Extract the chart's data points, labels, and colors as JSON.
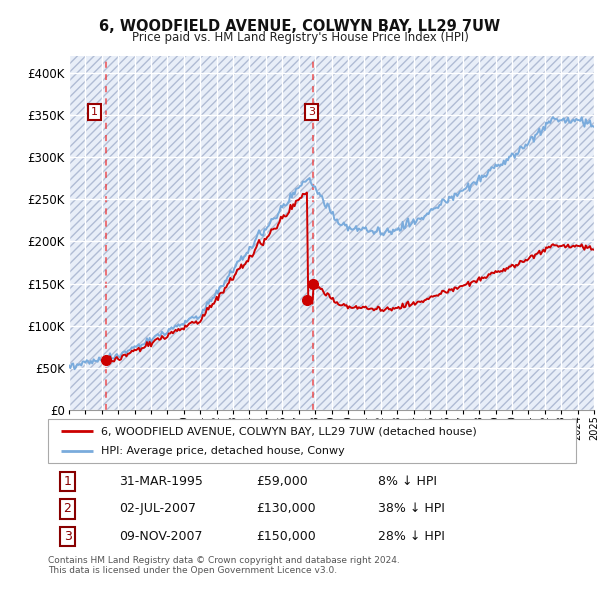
{
  "title": "6, WOODFIELD AVENUE, COLWYN BAY, LL29 7UW",
  "subtitle": "Price paid vs. HM Land Registry's House Price Index (HPI)",
  "ylim": [
    0,
    420000
  ],
  "yticks": [
    0,
    50000,
    100000,
    150000,
    200000,
    250000,
    300000,
    350000,
    400000
  ],
  "ytick_labels": [
    "£0",
    "£50K",
    "£100K",
    "£150K",
    "£200K",
    "£250K",
    "£300K",
    "£350K",
    "£400K"
  ],
  "bg_color": "#e8eef8",
  "grid_color": "#ffffff",
  "hatch_color": "#b0bcd4",
  "sale_color": "#cc0000",
  "hpi_color": "#7aabdc",
  "dashed_line_color": "#ee3333",
  "x_start_year": 1993,
  "x_end_year": 2025,
  "t1_year": 1995.25,
  "t1_price": 59000,
  "t2_year": 2007.5,
  "t2_price": 130000,
  "t3_year": 2007.87,
  "t3_price": 150000,
  "legend_line1": "6, WOODFIELD AVENUE, COLWYN BAY, LL29 7UW (detached house)",
  "legend_line2": "HPI: Average price, detached house, Conwy",
  "table_rows": [
    {
      "num": "1",
      "date": "31-MAR-1995",
      "price": "£59,000",
      "hpi": "8% ↓ HPI"
    },
    {
      "num": "2",
      "date": "02-JUL-2007",
      "price": "£130,000",
      "hpi": "38% ↓ HPI"
    },
    {
      "num": "3",
      "date": "09-NOV-2007",
      "price": "£150,000",
      "hpi": "28% ↓ HPI"
    }
  ],
  "footnote1": "Contains HM Land Registry data © Crown copyright and database right 2024.",
  "footnote2": "This data is licensed under the Open Government Licence v3.0."
}
